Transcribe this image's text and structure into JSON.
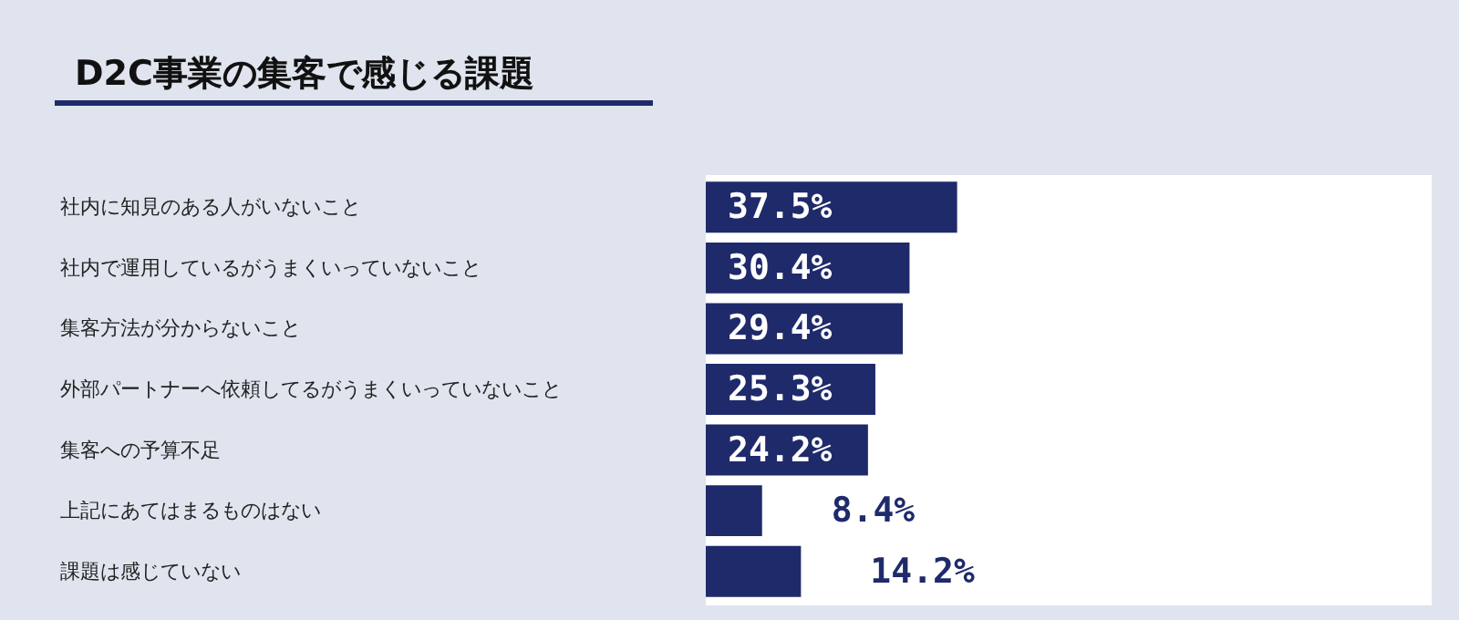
{
  "chart_data": {
    "type": "bar",
    "orientation": "horizontal",
    "title": "D2C事業の集客で感じる課題",
    "categories": [
      "社内に知見のある人がいないこと",
      "社内で運用しているがうまくいっていないこと",
      "集客方法が分からないこと",
      "外部パートナーへ依頼してるがうまくいっていないこと",
      "集客への予算不足",
      "上記にあてはまるものはない",
      "課題は感じていない"
    ],
    "values": [
      37.5,
      30.4,
      29.4,
      25.3,
      24.2,
      8.4,
      14.2
    ],
    "value_labels": [
      "37.5%",
      "30.4%",
      "29.4%",
      "25.3%",
      "24.2%",
      "8.4%",
      "14.2%"
    ],
    "color": "#1f2a6b",
    "tick_labels": "y"
  }
}
